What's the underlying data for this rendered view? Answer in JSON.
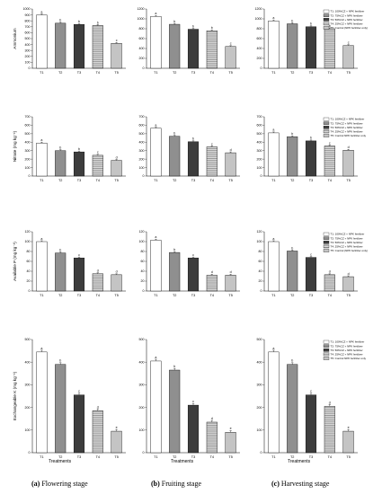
{
  "treatments": [
    "T1",
    "T2",
    "T3",
    "T4",
    "T5"
  ],
  "legend": {
    "entries": [
      "T1: 100%CZ + NPK fertilizer",
      "T2: 75%CZ + NPK fertilizer",
      "T3: 50%CZ + NPK fertilizer",
      "T4: 25%CZ + NPK fertilizer",
      "T5: Control (NPK fertilizer only)"
    ],
    "entries_short": [
      "T1: 100%CZ + NPK fertilizer",
      "T2: 75%CZ + NPK fertilizer",
      "T3: 50%CZ + NPK fertilizer",
      "T4: 25%CZ + NPK fertilizer",
      "T5: Control NPK fertilizer only"
    ]
  },
  "xlabel": "Treatments",
  "columns": [
    {
      "caption_letter": "(a)",
      "caption_text": " Flowering stage"
    },
    {
      "caption_letter": "(b)",
      "caption_text": " Fruiting stage"
    },
    {
      "caption_letter": "(c)",
      "caption_text": " Harvesting stage"
    }
  ],
  "chart_data": [
    {
      "type": "bar",
      "stage": "Flowering",
      "ylabel": "Ammonium",
      "categories": [
        "T1",
        "T2",
        "T3",
        "T4",
        "T5"
      ],
      "values": [
        900,
        760,
        740,
        720,
        420
      ],
      "letters": [
        "a",
        "b",
        "b",
        "b",
        "c"
      ],
      "ylim": [
        0,
        1000
      ],
      "yticks": [
        0,
        100,
        200,
        300,
        400,
        500,
        600,
        700,
        800,
        900,
        1000
      ]
    },
    {
      "type": "bar",
      "stage": "Fruiting",
      "ylabel": "",
      "categories": [
        "T1",
        "T2",
        "T3",
        "T4",
        "T5"
      ],
      "values": [
        1050,
        890,
        790,
        760,
        440
      ],
      "letters": [
        "a",
        "b",
        "b",
        "b",
        "c"
      ],
      "ylim": [
        0,
        1200
      ],
      "yticks": [
        0,
        200,
        400,
        600,
        800,
        1000,
        1200
      ]
    },
    {
      "type": "bar",
      "stage": "Harvesting",
      "ylabel": "",
      "categories": [
        "T1",
        "T2",
        "T3",
        "T4",
        "T5"
      ],
      "values": [
        960,
        900,
        840,
        800,
        460
      ],
      "letters": [
        "a",
        "b",
        "b",
        "b",
        "c"
      ],
      "ylim": [
        0,
        1200
      ],
      "yticks": [
        0,
        200,
        400,
        600,
        800,
        1000,
        1200
      ]
    },
    {
      "type": "bar",
      "stage": "Flowering",
      "ylabel": "Nitrate (mg kg⁻¹)",
      "categories": [
        "T1",
        "T2",
        "T3",
        "T4",
        "T5"
      ],
      "values": [
        390,
        300,
        285,
        245,
        185
      ],
      "letters": [
        "a",
        "b",
        "b",
        "c",
        "d"
      ],
      "ylim": [
        0,
        700
      ],
      "yticks": [
        0,
        100,
        200,
        300,
        400,
        500,
        600,
        700
      ]
    },
    {
      "type": "bar",
      "stage": "Fruiting",
      "ylabel": "",
      "categories": [
        "T1",
        "T2",
        "T3",
        "T4",
        "T5"
      ],
      "values": [
        565,
        470,
        405,
        345,
        275
      ],
      "letters": [
        "a",
        "b",
        "b",
        "c",
        "d"
      ],
      "ylim": [
        0,
        700
      ],
      "yticks": [
        0,
        100,
        200,
        300,
        400,
        500,
        600,
        700
      ]
    },
    {
      "type": "bar",
      "stage": "Harvesting",
      "ylabel": "",
      "categories": [
        "T1",
        "T2",
        "T3",
        "T4",
        "T5"
      ],
      "values": [
        510,
        465,
        415,
        355,
        305
      ],
      "letters": [
        "a",
        "b",
        "b",
        "c",
        "d"
      ],
      "ylim": [
        0,
        700
      ],
      "yticks": [
        0,
        100,
        200,
        300,
        400,
        500,
        600,
        700
      ]
    },
    {
      "type": "bar",
      "stage": "Flowering",
      "ylabel": "Available P (mg kg⁻¹)",
      "categories": [
        "T1",
        "T2",
        "T3",
        "T4",
        "T5"
      ],
      "values": [
        100,
        77,
        67,
        35,
        33
      ],
      "letters": [
        "a",
        "b",
        "c",
        "d",
        "d"
      ],
      "ylim": [
        0,
        120
      ],
      "yticks": [
        0,
        20,
        40,
        60,
        80,
        100,
        120
      ]
    },
    {
      "type": "bar",
      "stage": "Fruiting",
      "ylabel": "",
      "categories": [
        "T1",
        "T2",
        "T3",
        "T4",
        "T5"
      ],
      "values": [
        103,
        78,
        67,
        32,
        32
      ],
      "letters": [
        "a",
        "b",
        "c",
        "d",
        "d"
      ],
      "ylim": [
        0,
        120
      ],
      "yticks": [
        0,
        20,
        40,
        60,
        80,
        100,
        120
      ]
    },
    {
      "type": "bar",
      "stage": "Harvesting",
      "ylabel": "",
      "categories": [
        "T1",
        "T2",
        "T3",
        "T4",
        "T5"
      ],
      "values": [
        100,
        81,
        68,
        33,
        29
      ],
      "letters": [
        "a",
        "b",
        "c",
        "d",
        "d"
      ],
      "ylim": [
        0,
        120
      ],
      "yticks": [
        0,
        20,
        40,
        60,
        80,
        100,
        120
      ]
    },
    {
      "type": "bar",
      "stage": "Flowering",
      "ylabel": "Exchangeable K (mg kg⁻¹)",
      "categories": [
        "T1",
        "T2",
        "T3",
        "T4",
        "T5"
      ],
      "values": [
        445,
        390,
        255,
        185,
        95
      ],
      "letters": [
        "a",
        "b",
        "c",
        "d",
        "e"
      ],
      "ylim": [
        0,
        500
      ],
      "yticks": [
        0,
        100,
        200,
        300,
        400,
        500
      ]
    },
    {
      "type": "bar",
      "stage": "Fruiting",
      "ylabel": "",
      "categories": [
        "T1",
        "T2",
        "T3",
        "T4",
        "T5"
      ],
      "values": [
        405,
        365,
        210,
        135,
        90
      ],
      "letters": [
        "a",
        "b",
        "c",
        "d",
        "e"
      ],
      "ylim": [
        0,
        500
      ],
      "yticks": [
        0,
        100,
        200,
        300,
        400,
        500
      ]
    },
    {
      "type": "bar",
      "stage": "Harvesting",
      "ylabel": "",
      "categories": [
        "T1",
        "T2",
        "T3",
        "T4",
        "T5"
      ],
      "values": [
        445,
        390,
        255,
        205,
        95
      ],
      "letters": [
        "a",
        "b",
        "c",
        "d",
        "e"
      ],
      "ylim": [
        0,
        500
      ],
      "yticks": [
        0,
        100,
        200,
        300,
        400,
        500
      ]
    }
  ]
}
